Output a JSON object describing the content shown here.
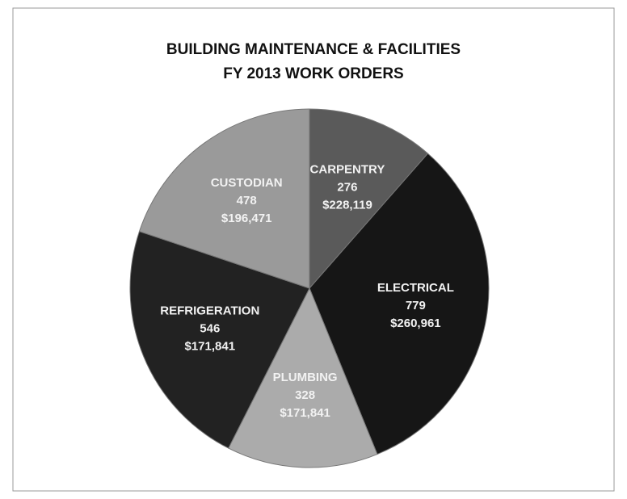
{
  "chart_data": {
    "type": "pie",
    "title": "BUILDING MAINTENANCE & FACILITIES",
    "subtitle": "FY 2013 WORK ORDERS",
    "categories": [
      "CARPENTRY",
      "ELECTRICAL",
      "PLUMBING",
      "REFRIGERATION",
      "CUSTODIAN"
    ],
    "values": [
      276,
      779,
      328,
      546,
      478
    ],
    "amount_labels": [
      "$228,119",
      "$260,961",
      "$171,841",
      "$171,841",
      "$196,471"
    ],
    "colors": [
      "#5a5a5a",
      "#161616",
      "#ababab",
      "#222222",
      "#9a9a9a"
    ]
  }
}
